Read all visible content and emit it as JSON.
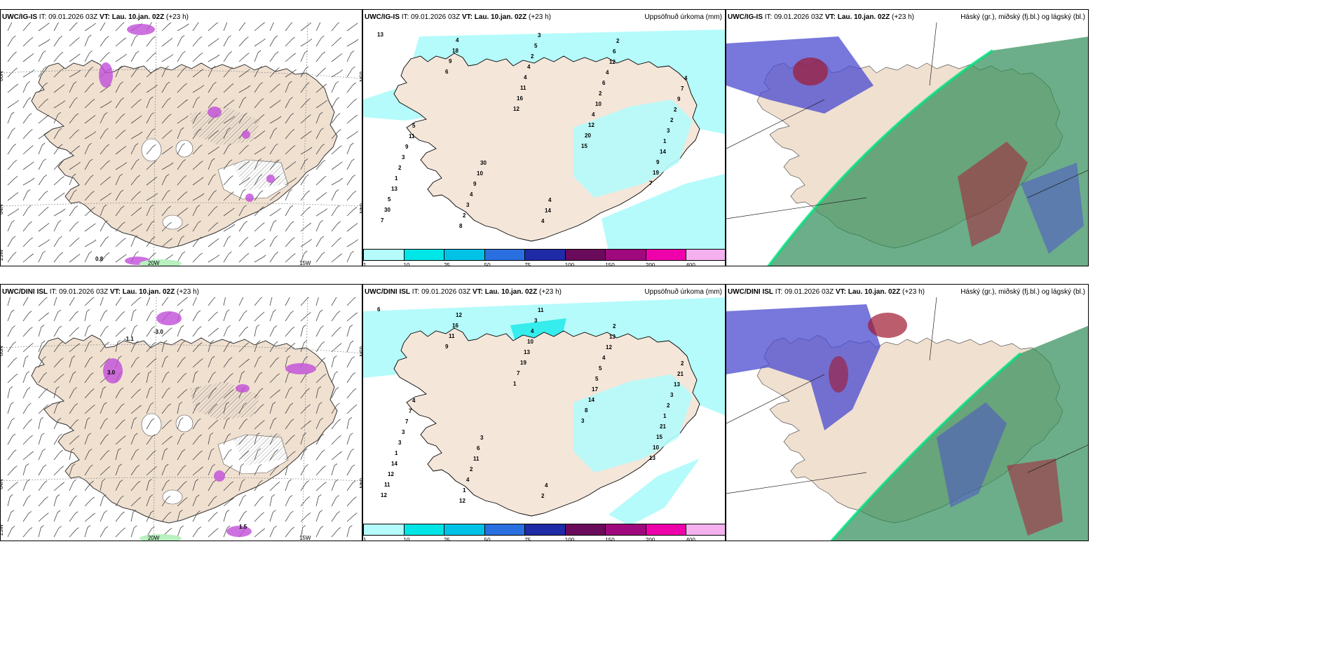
{
  "rows": [
    {
      "model": "UWC/IG-IS",
      "it_label": "IT:",
      "it": "09.01.2026 03Z",
      "vt_label": "VT:",
      "vt": "Lau. 10.jan. 02Z",
      "lead": "(+23 h)",
      "grid": {
        "lat_labels": [
          "66N",
          "64N"
        ],
        "lon_labels": [
          "20W",
          "15W",
          "25W"
        ],
        "lat_labels_right": [
          "65N",
          "64N"
        ]
      },
      "wind_values": [
        "0.8"
      ]
    },
    {
      "model": "UWC/DINI ISL",
      "it_label": "IT:",
      "it": "09.01.2026 03Z",
      "vt_label": "VT:",
      "vt": "Lau. 10.jan. 02Z",
      "lead": "(+23 h)",
      "grid": {
        "lat_labels": [
          "66N",
          "64N"
        ],
        "lon_labels": [
          "20W",
          "15W",
          "25W"
        ],
        "lat_labels_right": [
          "65N",
          "64N"
        ]
      },
      "wind_values": [
        "-1.1",
        "3.0",
        "-3.0",
        "1.5"
      ]
    }
  ],
  "precip_title": "Uppsöfnuð úrkoma (mm)",
  "cloud_title": "Háský (gr.), miðský (fj.bl.) og lágský (bl.)",
  "colorbar": {
    "ticks": [
      "1",
      "10",
      "25",
      "50",
      "75",
      "100",
      "150",
      "200",
      "400"
    ],
    "colors": [
      "#b5fbfb",
      "#00e6e6",
      "#00c2e6",
      "#2a6fe0",
      "#1e2aa6",
      "#6a0a5a",
      "#a0087e",
      "#ee00aa",
      "#f5b0f0"
    ]
  },
  "precip_values_top": [
    "13",
    "6",
    "12",
    "15",
    "7",
    "7",
    "9",
    "16",
    "20",
    "19",
    "30",
    "18",
    "11",
    "12",
    "9",
    "5",
    "4",
    "4",
    "4",
    "14",
    "13",
    "8",
    "4",
    "10",
    "1",
    "1",
    "2",
    "2",
    "2",
    "3",
    "2",
    "3",
    "5",
    "6",
    "2",
    "3",
    "4",
    "3",
    "4",
    "2",
    "9",
    "9",
    "4",
    "12",
    "9",
    "11",
    "10",
    "14",
    "6",
    "7",
    "5",
    "30",
    "4",
    "2",
    "4"
  ],
  "precip_values_bottom": [
    "6",
    "9",
    "1",
    "3",
    "13",
    "12",
    "11",
    "7",
    "8",
    "10",
    "11",
    "16",
    "19",
    "14",
    "15",
    "12",
    "12",
    "13",
    "17",
    "21",
    "14",
    "12",
    "10",
    "5",
    "1",
    "1",
    "1",
    "4",
    "5",
    "2",
    "3",
    "4",
    "3",
    "4",
    "3",
    "3",
    "2",
    "11",
    "12",
    "13",
    "7",
    "11",
    "2",
    "13",
    "21",
    "7",
    "6",
    "4",
    "2",
    "2",
    "4",
    "3"
  ]
}
